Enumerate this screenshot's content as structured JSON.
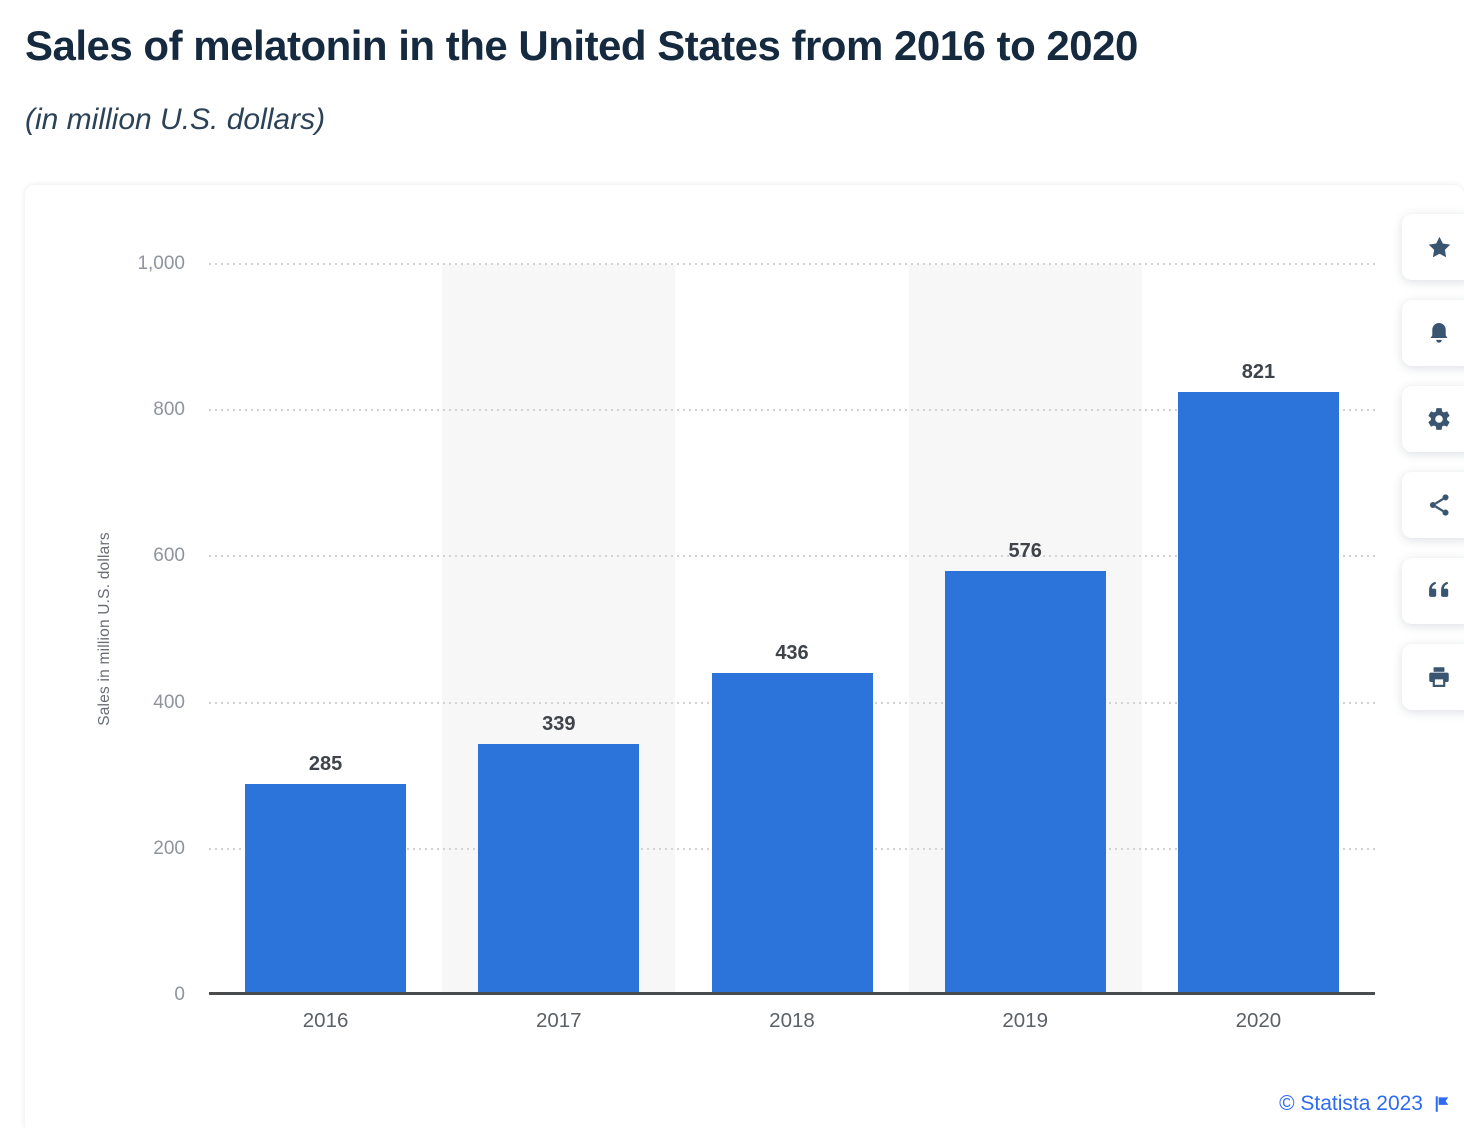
{
  "header": {
    "title": "Sales of melatonin in the United States from 2016 to 2020",
    "subtitle": "(in million U.S. dollars)"
  },
  "chart_data": {
    "type": "bar",
    "title": "Sales of melatonin in the United States from 2016 to 2020",
    "subtitle": "(in million U.S. dollars)",
    "categories": [
      "2016",
      "2017",
      "2018",
      "2019",
      "2020"
    ],
    "values": [
      285,
      339,
      436,
      576,
      821
    ],
    "xlabel": "",
    "ylabel": "Sales in million U.S. dollars",
    "ylim": [
      0,
      1000
    ],
    "yticks": [
      0,
      200,
      400,
      600,
      800,
      1000
    ],
    "ytick_labels": [
      "0",
      "200",
      "400",
      "600",
      "800",
      "1,000"
    ],
    "grid": "horizontal-dotted",
    "legend": "none",
    "bar_color": "#2d74da",
    "band_color": "#f7f7f8",
    "banded_columns": [
      1,
      3
    ],
    "gridline_color": "#d2d2d6",
    "axis_line_color": "#4a4b4d"
  },
  "toolbar": {
    "icon_color": "#3a556f",
    "buttons": [
      {
        "icon": "star-icon"
      },
      {
        "icon": "bell-icon"
      },
      {
        "icon": "gear-icon"
      },
      {
        "icon": "share-icon"
      },
      {
        "icon": "quote-icon"
      },
      {
        "icon": "print-icon"
      }
    ]
  },
  "footer": {
    "credit": "© Statista 2023",
    "flag_icon": "flag-icon",
    "credit_color": "#2d6bf2"
  }
}
